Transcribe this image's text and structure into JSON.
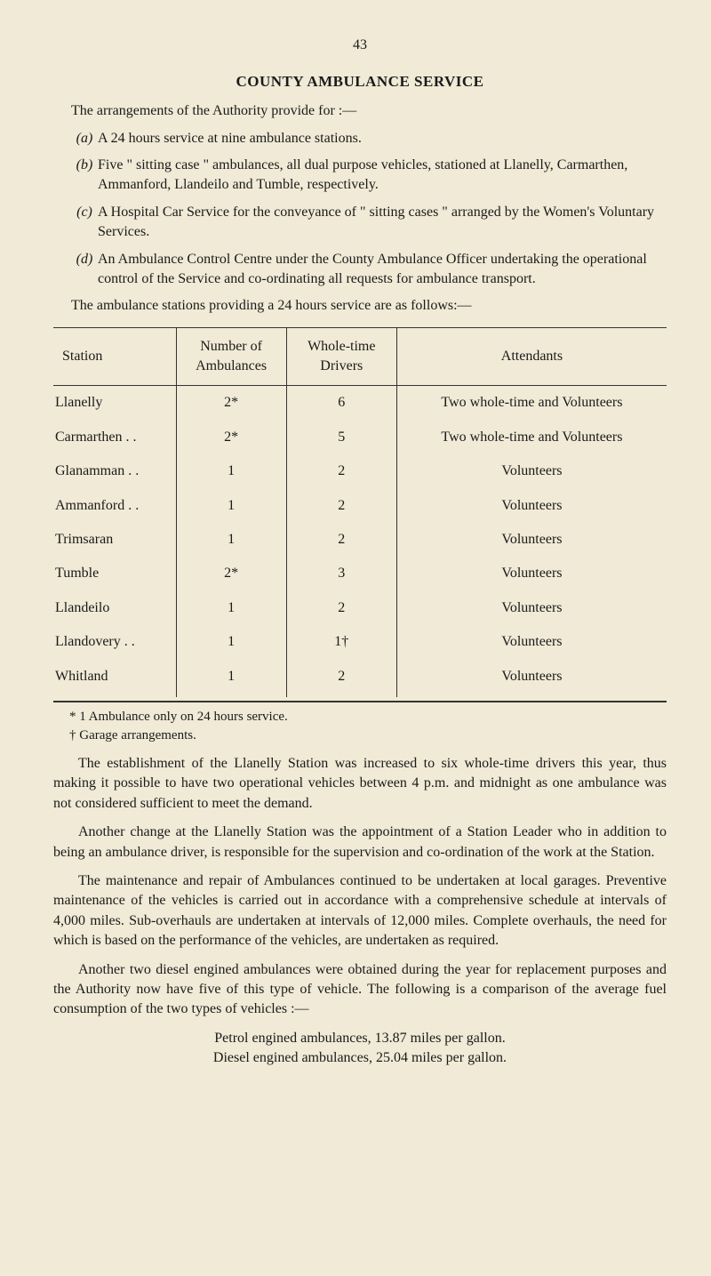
{
  "page_number": "43",
  "title": "COUNTY AMBULANCE SERVICE",
  "intro": "The arrangements of the Authority provide for :—",
  "items": [
    {
      "label": "(a)",
      "text": "A 24 hours service at nine ambulance stations."
    },
    {
      "label": "(b)",
      "text": "Five \" sitting case \" ambulances, all dual purpose vehicles, stationed at Llanelly, Carmarthen, Ammanford, Llandeilo and Tumble, respectively."
    },
    {
      "label": "(c)",
      "text": "A Hospital Car Service for the conveyance of \" sitting cases \" arranged by the Women's Voluntary Services."
    },
    {
      "label": "(d)",
      "text": "An Ambulance Control Centre under the County Ambulance Officer undertaking the operational control of the Service and co-ordinating all requests for ambulance transport."
    }
  ],
  "final_intro": "The ambulance stations providing a 24 hours service are as follows:—",
  "table": {
    "columns": [
      "Station",
      "Number of Ambulances",
      "Whole-time Drivers",
      "Attendants"
    ],
    "rows": [
      [
        "Llanelly",
        "2*",
        "6",
        "Two whole-time and Volunteers"
      ],
      [
        "Carmarthen  . .",
        "2*",
        "5",
        "Two whole-time and Volunteers"
      ],
      [
        "Glanamman  . .",
        "1",
        "2",
        "Volunteers"
      ],
      [
        "Ammanford  . .",
        "1",
        "2",
        "Volunteers"
      ],
      [
        "Trimsaran",
        "1",
        "2",
        "Volunteers"
      ],
      [
        "Tumble",
        "2*",
        "3",
        "Volunteers"
      ],
      [
        "Llandeilo",
        "1",
        "2",
        "Volunteers"
      ],
      [
        "Llandovery  . .",
        "1",
        "1†",
        "Volunteers"
      ],
      [
        "Whitland",
        "1",
        "2",
        "Volunteers"
      ]
    ]
  },
  "footnotes": [
    "* 1 Ambulance only on 24 hours service.",
    "† Garage arrangements."
  ],
  "paragraphs": [
    "The establishment of the Llanelly Station was increased to six whole-time drivers this year, thus making it possible to have two operational vehicles between 4 p.m. and midnight as one ambulance was not considered sufficient to meet the demand.",
    "Another change at the Llanelly Station was the appointment of a Station Leader who in addition to being an ambulance driver, is responsible for the supervision and co-ordination of the work at the Station.",
    "The maintenance and repair of Ambulances continued to be undertaken at local garages. Preventive maintenance of the vehicles is carried out in accordance with a comprehensive schedule at intervals of 4,000 miles. Sub-overhauls are undertaken at intervals of 12,000 miles. Complete overhauls, the need for which is based on the performance of the vehicles, are undertaken as required.",
    "Another two diesel engined ambulances were obtained during the year for replacement purposes and the Authority now have five of this type of vehicle. The following is a comparison of the average fuel consumption of the two types of vehicles :—"
  ],
  "comparison": [
    "Petrol engined ambulances, 13.87 miles per gallon.",
    "Diesel engined ambulances, 25.04 miles per gallon."
  ]
}
